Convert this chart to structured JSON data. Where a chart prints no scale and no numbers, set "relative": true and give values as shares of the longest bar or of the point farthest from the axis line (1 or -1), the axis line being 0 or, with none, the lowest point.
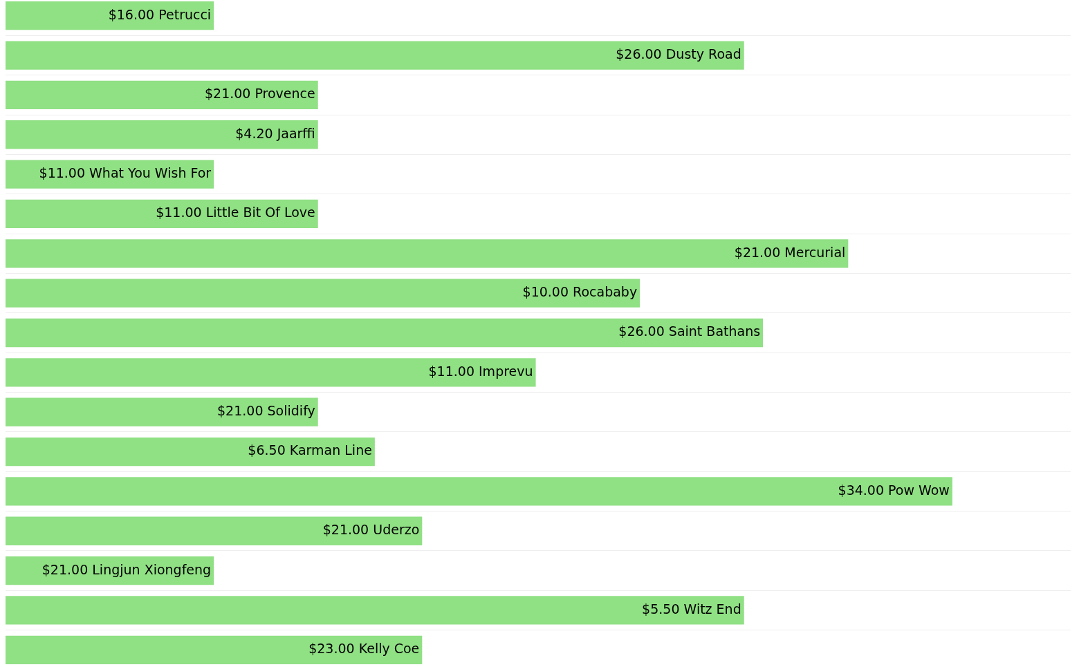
{
  "chart_data": {
    "type": "bar",
    "orientation": "horizontal",
    "relative": true,
    "grid": "y",
    "color": "#90e084",
    "categories": [
      "$16.00 Petrucci",
      "$26.00 Dusty Road",
      "$21.00 Provence",
      "$4.20 Jaarffi",
      "$11.00 What You Wish For",
      "$11.00 Little Bit Of Love",
      "$21.00 Mercurial",
      "$10.00 Rocababy",
      "$26.00 Saint Bathans",
      "$11.00 Imprevu",
      "$21.00 Solidify",
      "$6.50 Karman Line",
      "$34.00 Pow Wow",
      "$21.00 Uderzo",
      "$21.00 Lingjun Xiongfeng",
      "$5.50 Witz End",
      "$23.00 Kelly Coe"
    ],
    "values": [
      0.22,
      0.78,
      0.33,
      0.33,
      0.22,
      0.33,
      0.89,
      0.67,
      0.8,
      0.56,
      0.33,
      0.39,
      1,
      0.44,
      0.22,
      0.78,
      0.44
    ]
  }
}
